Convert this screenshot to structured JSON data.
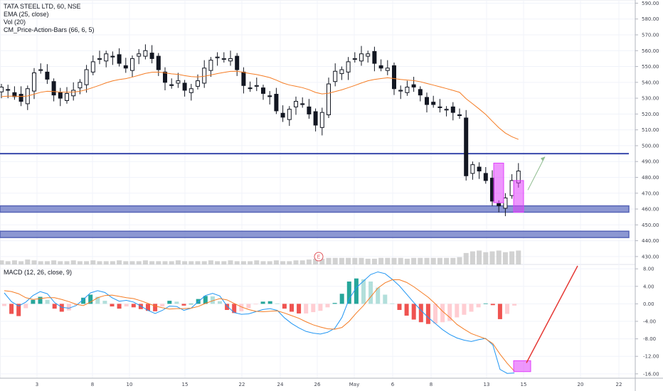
{
  "legend": {
    "title": "TATA STEEL LTD, 60, NSE",
    "ema": "EMA (25, close)",
    "vol": "Vol (20)",
    "cm": "CM_Price-Action-Bars (66, 6, 5)",
    "macd": "MACD (12, 26, close, 9)"
  },
  "earnings_marker": "E",
  "colors": {
    "candle": "#131722",
    "ema": "#f57c24",
    "macd_line": "#2196f3",
    "signal_line": "#f57c24",
    "hist_pos_strong": "#26a69a",
    "hist_pos_weak": "#b2dfdb",
    "hist_neg_strong": "#ef5350",
    "hist_neg_weak": "#ffcdd2",
    "hline": "#3949ab",
    "zone_fill": "#7986cb",
    "highlight": "#e040fb",
    "arrow_red": "#e53935",
    "arrow_green": "#8fbc8f",
    "volume": "#c7c7c7"
  },
  "chart_data": [
    {
      "type": "candlestick",
      "title": "TATA STEEL LTD, 60, NSE",
      "ylim": [
        425,
        592
      ],
      "y_ticks": [
        "590.00",
        "580.00",
        "570.00",
        "560.00",
        "550.00",
        "540.00",
        "530.00",
        "520.00",
        "510.00",
        "500.00",
        "490.00",
        "480.00",
        "470.00",
        "460.00",
        "450.00",
        "440.00",
        "430.00"
      ],
      "x_ticks": [
        "3",
        "8",
        "10",
        "15",
        "22",
        "24",
        "26",
        "May",
        "6",
        "8",
        "13",
        "15",
        "20",
        "22"
      ],
      "horizontal_lines": [
        495
      ],
      "zones": [
        [
          458,
          462
        ],
        [
          442,
          446
        ]
      ],
      "highlight_boxes": [
        [
          464,
          489
        ],
        [
          458,
          478
        ]
      ],
      "close_path": [
        537,
        535,
        531,
        528,
        536,
        546,
        548,
        542,
        532,
        530,
        533,
        535,
        540,
        548,
        553,
        555,
        558,
        556,
        552,
        549,
        555,
        558,
        560,
        555,
        548,
        540,
        538,
        541,
        535,
        536,
        541,
        549,
        554,
        556,
        555,
        555,
        548,
        538,
        536,
        538,
        533,
        531,
        522,
        518,
        523,
        528,
        526,
        520,
        513,
        521,
        539,
        547,
        548,
        553,
        555,
        558,
        558,
        552,
        549,
        549,
        536,
        535,
        537,
        537,
        532,
        526,
        526,
        524,
        523,
        521,
        519,
        481,
        488,
        484,
        478,
        465,
        462,
        467,
        478,
        484
      ],
      "volume": [
        5,
        4,
        5,
        4,
        6,
        5,
        4,
        4,
        5,
        4,
        4,
        5,
        4,
        4,
        5,
        4,
        4,
        4,
        5,
        4,
        4,
        4,
        5,
        4,
        4,
        4,
        4,
        5,
        4,
        4,
        4,
        4,
        5,
        4,
        4,
        5,
        4,
        4,
        4,
        5,
        4,
        4,
        5,
        4,
        4,
        5,
        5,
        6,
        7,
        7,
        8,
        8,
        8,
        8,
        8,
        8,
        7,
        7,
        8,
        8,
        8,
        8,
        7,
        8,
        8,
        8,
        8,
        8,
        8,
        8,
        9,
        14,
        16,
        17,
        15,
        16,
        17,
        15,
        16,
        17
      ]
    },
    {
      "type": "line",
      "title": "MACD (12, 26, close, 9)",
      "ylim": [
        -17,
        9
      ],
      "y_ticks": [
        "8.00",
        "4.00",
        "0.00",
        "-4.00",
        "-8.00",
        "-12.00",
        "-16.00"
      ],
      "series": [
        {
          "name": "MACD",
          "values": [
            2.5,
            0.5,
            -0.5,
            0.4,
            1.9,
            2.8,
            2.3,
            0.3,
            -0.8,
            -1.0,
            -0.4,
            1.0,
            2.5,
            3.0,
            2.6,
            1.4,
            0.6,
            0.8,
            0.4,
            -0.5,
            -1.5,
            -2.2,
            -1.5,
            -0.5,
            -0.6,
            -1.5,
            -1.0,
            0.5,
            1.9,
            2.4,
            1.8,
            -0.5,
            -2.0,
            -2.4,
            -2.3,
            -1.8,
            -1.3,
            -1.1,
            -1.5,
            -3.2,
            -4.5,
            -5.5,
            -6.3,
            -6.7,
            -6.9,
            -6.5,
            -5.6,
            -3.1,
            1.1,
            3.7,
            5.2,
            6.7,
            7.3,
            6.9,
            5.6,
            4.1,
            2.2,
            0.3,
            -1.5,
            -3.1,
            -4.5,
            -5.9,
            -7.0,
            -7.8,
            -8.3,
            -8.6,
            -8.2,
            -7.9,
            -9.4,
            -15.0,
            -15.9,
            -15.8
          ]
        },
        {
          "name": "Signal",
          "values": [
            3.0,
            2.8,
            2.3,
            1.4,
            1.0,
            1.2,
            1.4,
            1.4,
            1.0,
            0.5,
            -0.1,
            -0.4,
            0.4,
            1.4,
            1.9,
            2.0,
            1.7,
            1.4,
            1.2,
            0.7,
            0.1,
            -0.5,
            -0.9,
            -1.2,
            -1.1,
            -1.1,
            -1.0,
            -0.6,
            0.1,
            0.7,
            1.2,
            0.9,
            0.1,
            -0.7,
            -1.3,
            -1.7,
            -1.8,
            -1.7,
            -1.6,
            -2.1,
            -2.7,
            -3.3,
            -4.1,
            -4.8,
            -5.3,
            -5.7,
            -5.8,
            -5.4,
            -4.0,
            -2.1,
            -0.4,
            1.6,
            3.6,
            4.8,
            5.5,
            5.5,
            4.9,
            3.9,
            2.7,
            1.5,
            0.0,
            -1.7,
            -3.1,
            -4.7,
            -5.8,
            -6.8,
            -7.4,
            -8.0,
            -9.1,
            -11.5,
            -13.6,
            -15.4
          ]
        }
      ],
      "highlight_boxes": [
        [
          -15.5,
          -13.0
        ]
      ]
    }
  ]
}
